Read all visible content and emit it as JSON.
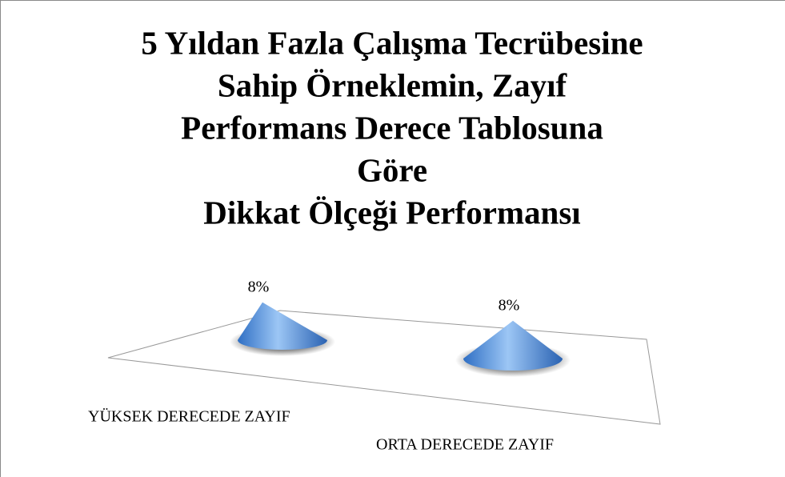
{
  "chart_data": {
    "type": "cone",
    "title": [
      "5 Yıldan Fazla Çalışma Tecrübesine",
      "Sahip Örneklemin, Zayıf",
      "Performans Derece Tablosuna",
      "Göre",
      "Dikkat Ölçeği Performansı"
    ],
    "categories": [
      "YÜKSEK DERECEDE ZAYIF",
      "ORTA DERECEDE ZAYIF"
    ],
    "values": [
      8,
      8
    ],
    "value_labels": [
      "8%",
      "8%"
    ],
    "color": "#4f8fdc"
  }
}
